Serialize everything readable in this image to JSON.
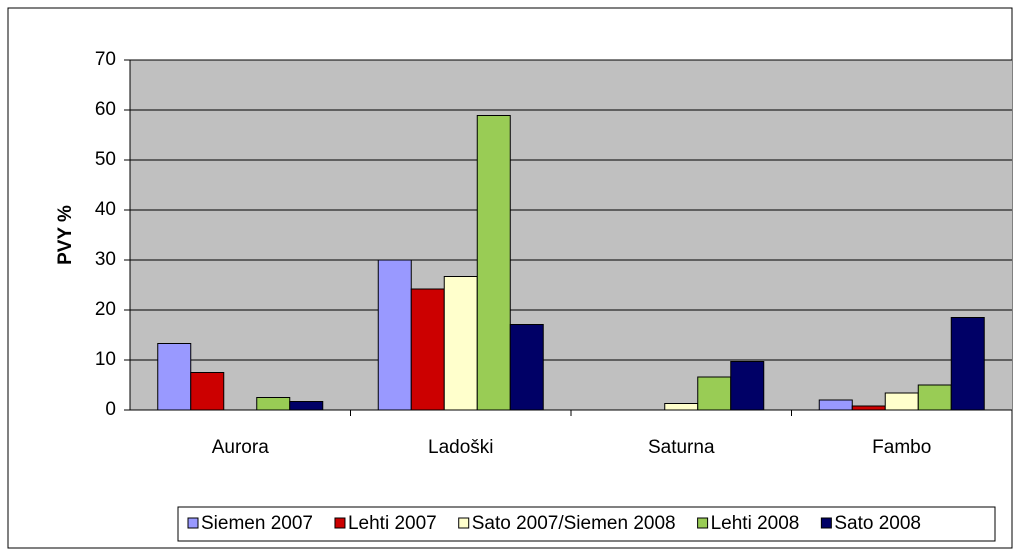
{
  "chart_data": {
    "type": "bar",
    "ylabel": "PVY %",
    "categories": [
      "Aurora",
      "Ladoški",
      "Saturna",
      "Fambo"
    ],
    "series": [
      {
        "name": "Siemen 2007",
        "color": "#9999ff",
        "values": [
          13.3,
          30,
          0,
          2
        ]
      },
      {
        "name": "Lehti 2007",
        "color": "#cc0000",
        "values": [
          7.5,
          24.2,
          0,
          0.8
        ]
      },
      {
        "name": "Sato 2007/Siemen 2008",
        "color": "#ffffcc",
        "values": [
          0,
          26.7,
          1.3,
          3.4
        ]
      },
      {
        "name": "Lehti 2008",
        "color": "#99cc55",
        "values": [
          2.5,
          58.9,
          6.6,
          5
        ]
      },
      {
        "name": "Sato 2008",
        "color": "#000066",
        "values": [
          1.7,
          17.1,
          9.7,
          18.5
        ]
      }
    ],
    "ylim": [
      0,
      70
    ],
    "yticks": [
      0,
      10,
      20,
      30,
      40,
      50,
      60,
      70
    ],
    "grid": true,
    "legend": "bottom"
  }
}
